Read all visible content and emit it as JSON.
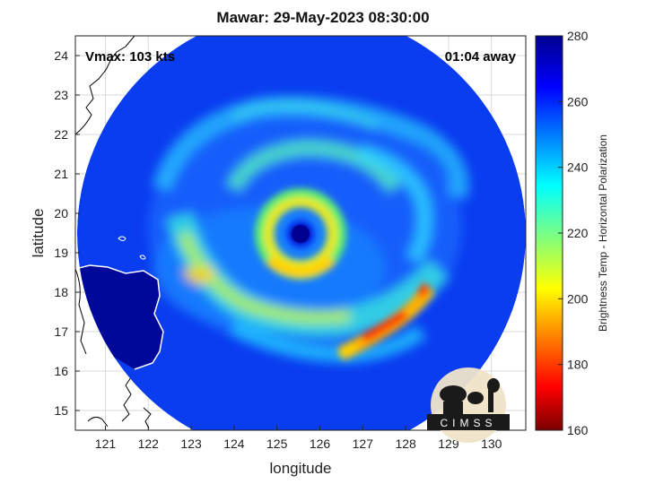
{
  "chart_data": {
    "type": "heatmap",
    "title": "Mawar: 29-May-2023 08:30:00",
    "annotations": {
      "vmax": "Vmax: 103 kts",
      "away": "01:04 away"
    },
    "xlabel": "longitude",
    "ylabel": "latitude",
    "xlim": [
      120.3,
      130.8
    ],
    "ylim": [
      14.5,
      24.5
    ],
    "x_ticks": [
      121,
      122,
      123,
      124,
      125,
      126,
      127,
      128,
      129,
      130
    ],
    "y_ticks": [
      15,
      16,
      17,
      18,
      19,
      20,
      21,
      22,
      23,
      24
    ],
    "grid": true,
    "colorbar": {
      "label": "Brightness Temp - Horizontal Polarization",
      "range": [
        160,
        280
      ],
      "ticks": [
        160,
        180,
        200,
        220,
        240,
        260,
        280
      ],
      "colormap": "jet"
    },
    "swath": {
      "center_lon": 125.5,
      "center_lat": 19.5,
      "radius_deg": 5.2
    },
    "eye": {
      "lon": 125.6,
      "lat": 19.5,
      "value": 270
    },
    "background_value": 268,
    "features": [
      {
        "name": "inner eyewall",
        "value": 212
      },
      {
        "name": "western outer band",
        "value": 205
      },
      {
        "name": "southeastern band",
        "value": 175
      },
      {
        "name": "southern band",
        "value": 215
      }
    ]
  },
  "logo": {
    "text": "CIMSS"
  },
  "colors": {
    "cold_end": "#7a0000",
    "warm_end": "#00008f",
    "coast": "#000000",
    "swath_coast": "#ffffff"
  }
}
